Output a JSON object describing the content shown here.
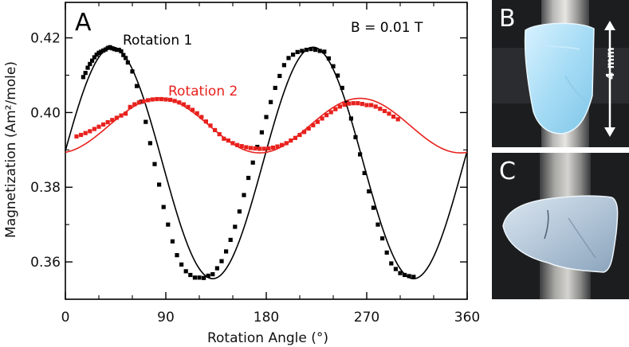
{
  "chart_data": {
    "type": "scatter",
    "panel_label": "A",
    "annotation": "B = 0.01 T",
    "xlabel": "Rotation Angle (°)",
    "ylabel": "Magnetization (Am²/mole)",
    "xlim": [
      0,
      360
    ],
    "ylim": [
      0.35,
      0.4295
    ],
    "xticks": [
      0,
      90,
      180,
      270,
      360
    ],
    "xtick_labels": [
      "0",
      "90",
      "180",
      "270",
      "360"
    ],
    "yticks": [
      0.36,
      0.38,
      0.4,
      0.42
    ],
    "ytick_labels": [
      "0.36",
      "0.38",
      "0.40",
      "0.42"
    ],
    "grid": false,
    "legend": "inline labels",
    "series": [
      {
        "name": "Rotation 1",
        "color": "#000000",
        "marker": "square",
        "fit": {
          "model": "y = mean + amp*cos(2*(x - x_peak))",
          "mean": 0.3865,
          "amp": 0.031,
          "x_peak": 42,
          "x_range": [
            0,
            360
          ]
        },
        "x": [
          16,
          18,
          20,
          22,
          24,
          26,
          28,
          30,
          32,
          34,
          36,
          38,
          40,
          42,
          44,
          46,
          48,
          50,
          52,
          54,
          56,
          60,
          64,
          68,
          72,
          76,
          80,
          84,
          88,
          92,
          96,
          100,
          104,
          108,
          112,
          116,
          120,
          124,
          128,
          132,
          136,
          140,
          144,
          148,
          152,
          156,
          160,
          164,
          168,
          172,
          176,
          180,
          184,
          188,
          192,
          196,
          200,
          204,
          208,
          212,
          216,
          220,
          224,
          228,
          232,
          236,
          240,
          244,
          248,
          252,
          256,
          260,
          264,
          268,
          272,
          276,
          280,
          284,
          288,
          292,
          296,
          300,
          304,
          308,
          312
        ],
        "y": [
          0.4095,
          0.4106,
          0.412,
          0.413,
          0.4139,
          0.4148,
          0.4155,
          0.416,
          0.4163,
          0.4166,
          0.4169,
          0.4173,
          0.4175,
          0.4172,
          0.417,
          0.4168,
          0.4168,
          0.4164,
          0.4154,
          0.4146,
          0.4134,
          0.411,
          0.4071,
          0.4029,
          0.3975,
          0.3918,
          0.3862,
          0.3807,
          0.3747,
          0.37,
          0.3655,
          0.3618,
          0.3593,
          0.3575,
          0.3565,
          0.3558,
          0.3558,
          0.3557,
          0.3563,
          0.3567,
          0.3583,
          0.3602,
          0.3628,
          0.3659,
          0.3694,
          0.3735,
          0.3779,
          0.3825,
          0.3866,
          0.3908,
          0.3947,
          0.3988,
          0.4028,
          0.4066,
          0.4098,
          0.4127,
          0.4146,
          0.4155,
          0.4162,
          0.4165,
          0.4168,
          0.417,
          0.4168,
          0.4165,
          0.4163,
          0.4145,
          0.4124,
          0.4099,
          0.4066,
          0.4026,
          0.3984,
          0.3934,
          0.3888,
          0.3838,
          0.3789,
          0.3745,
          0.37,
          0.3663,
          0.3625,
          0.3596,
          0.3581,
          0.357,
          0.3565,
          0.3562,
          0.356
        ]
      },
      {
        "name": "Rotation 2",
        "color": "#e8211d",
        "marker": "square",
        "fit": {
          "model": "y = mean + amp*cos(2*(x - x_peak))",
          "mean": 0.3965,
          "amp": 0.0073,
          "x_peak": 84,
          "x_range": [
            0,
            360
          ]
        },
        "x": [
          10,
          14,
          18,
          22,
          26,
          30,
          34,
          38,
          42,
          46,
          50,
          54,
          58,
          62,
          66,
          70,
          74,
          78,
          82,
          86,
          90,
          94,
          98,
          102,
          106,
          110,
          114,
          118,
          122,
          126,
          130,
          134,
          138,
          142,
          146,
          150,
          154,
          158,
          162,
          166,
          170,
          174,
          178,
          182,
          186,
          190,
          194,
          198,
          202,
          206,
          210,
          214,
          218,
          222,
          226,
          230,
          234,
          238,
          242,
          246,
          250,
          254,
          258,
          262,
          266,
          270,
          274,
          278,
          282,
          286,
          290,
          294,
          298
        ],
        "y": [
          0.3936,
          0.394,
          0.3945,
          0.395,
          0.3956,
          0.3962,
          0.3968,
          0.3974,
          0.398,
          0.3986,
          0.3992,
          0.3997,
          0.4015,
          0.4022,
          0.4027,
          0.403,
          0.4033,
          0.4035,
          0.4036,
          0.4036,
          0.4035,
          0.4034,
          0.4031,
          0.4027,
          0.4022,
          0.4015,
          0.4007,
          0.3998,
          0.3988,
          0.3976,
          0.3965,
          0.3953,
          0.3942,
          0.393,
          0.3925,
          0.3918,
          0.3913,
          0.391,
          0.3907,
          0.3905,
          0.3904,
          0.3903,
          0.3903,
          0.3904,
          0.3906,
          0.3909,
          0.3913,
          0.3918,
          0.3925,
          0.3932,
          0.394,
          0.3948,
          0.3957,
          0.3966,
          0.3975,
          0.3984,
          0.3993,
          0.4001,
          0.4009,
          0.4016,
          0.4021,
          0.4024,
          0.4025,
          0.4025,
          0.4023,
          0.402,
          0.402,
          0.4016,
          0.401,
          0.4004,
          0.3997,
          0.3989,
          0.3982
        ]
      }
    ]
  },
  "photos": [
    {
      "panel": "B",
      "scale_label": "4 mm"
    },
    {
      "panel": "C"
    }
  ]
}
